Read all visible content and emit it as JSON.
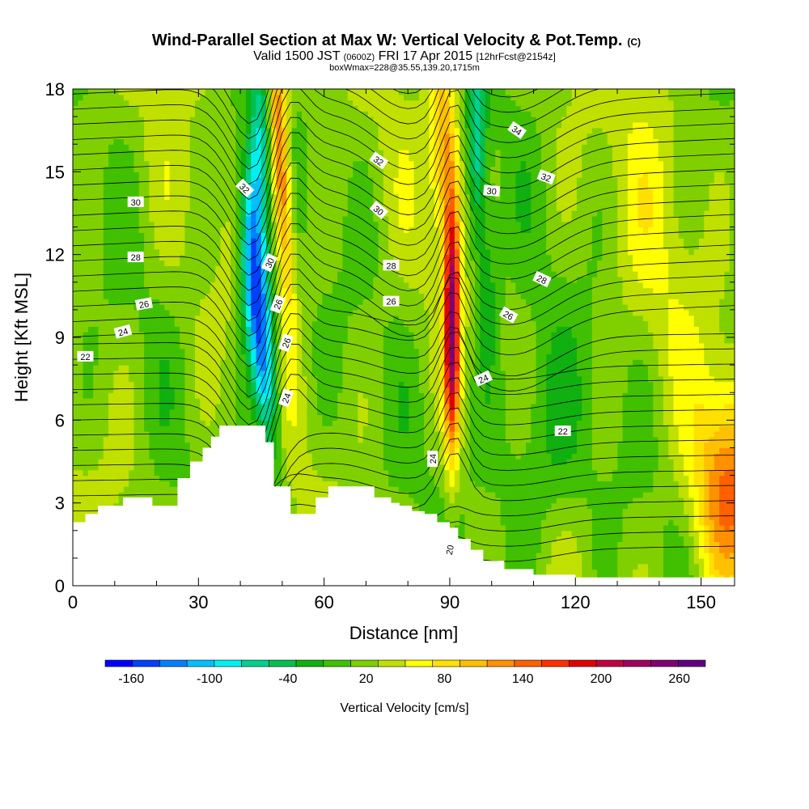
{
  "chart_data": {
    "type": "heatmap",
    "title": "Wind-Parallel Section at Max W: Vertical Velocity & Pot.Temp.",
    "title_units": "(C)",
    "subtitle": {
      "valid": "Valid 1500 JST",
      "zulu": "(0600Z)",
      "date": "FRI 17 Apr 2015",
      "forecast": "[12hrFcst@2154z]"
    },
    "info": "boxWmax=228@35.55,139.20,1715m",
    "xlabel": "Distance [nm]",
    "ylabel": "Height [Kft MSL]",
    "xlim": [
      0,
      158
    ],
    "ylim": [
      0,
      18
    ],
    "x_ticks": [
      0,
      30,
      60,
      90,
      120,
      150
    ],
    "y_ticks": [
      0,
      3,
      6,
      9,
      12,
      15,
      18
    ],
    "grid": false,
    "fill_variable": "Vertical Velocity [cm/s]",
    "colorbar": {
      "label": "Vertical Velocity [cm/s]",
      "tick_labels": [
        "-160",
        "-100",
        "-40",
        "20",
        "80",
        "140",
        "200",
        "260"
      ],
      "tick_values": [
        -160,
        -100,
        -40,
        20,
        80,
        140,
        200,
        260
      ],
      "range": [
        -180,
        280
      ],
      "colors": [
        "#0000ff",
        "#0040ff",
        "#0080ff",
        "#00c0ff",
        "#00f0f0",
        "#00d090",
        "#00c050",
        "#10b010",
        "#40c000",
        "#80d000",
        "#c0e000",
        "#ffff00",
        "#ffe000",
        "#ffc000",
        "#ff9000",
        "#ff6000",
        "#ff3000",
        "#e00000",
        "#c00040",
        "#a00060",
        "#800070",
        "#600080"
      ]
    },
    "terrain_profile": {
      "x": [
        0,
        3,
        6,
        12,
        19,
        25,
        28,
        31,
        33,
        35,
        38,
        46,
        48,
        52,
        55,
        58,
        61,
        67,
        72,
        76,
        78,
        81,
        84,
        87,
        90,
        92,
        95,
        98,
        103,
        110,
        120,
        140,
        158
      ],
      "height_kft": [
        2.3,
        2.6,
        2.9,
        3.2,
        2.9,
        3.9,
        4.5,
        5.0,
        5.4,
        5.8,
        5.8,
        5.2,
        3.6,
        2.6,
        2.6,
        3.2,
        3.6,
        3.6,
        3.2,
        3.0,
        2.9,
        2.7,
        2.6,
        2.3,
        2.1,
        1.7,
        1.3,
        0.9,
        0.6,
        0.4,
        0.3,
        0.3,
        0.3
      ]
    },
    "vertical_velocity_features": [
      {
        "name": "downdraft",
        "x_nm": 43,
        "z_top_kft": 18,
        "z_bottom_kft": 4,
        "min_cm_s": -150
      },
      {
        "name": "upper updraft",
        "x_nm": 50,
        "z_top_kft": 18,
        "z_bottom_kft": 8,
        "max_cm_s": 150
      },
      {
        "name": "main updraft",
        "x_nm": 90,
        "z_top_kft": 18,
        "z_bottom_kft": 4.5,
        "max_cm_s": 228
      },
      {
        "name": "downstream sink",
        "x_nm": 96,
        "z_top_kft": 18,
        "z_bottom_kft": 12,
        "min_cm_s": -80
      },
      {
        "name": "surface updraft",
        "x_nm": 155,
        "z_top_kft": 7,
        "z_bottom_kft": 0,
        "max_cm_s": 110
      }
    ],
    "pot_temp_contour_labels": [
      {
        "text": "34",
        "x": 106,
        "z": 16.5,
        "angle": 35
      },
      {
        "text": "32",
        "x": 73,
        "z": 15.4,
        "angle": 35
      },
      {
        "text": "32",
        "x": 41,
        "z": 14.4,
        "angle": 45
      },
      {
        "text": "32",
        "x": 113,
        "z": 14.8,
        "angle": 20
      },
      {
        "text": "30",
        "x": 15,
        "z": 13.9,
        "angle": 0
      },
      {
        "text": "30",
        "x": 73,
        "z": 13.6,
        "angle": 40
      },
      {
        "text": "30",
        "x": 100,
        "z": 14.3,
        "angle": 5
      },
      {
        "text": "30",
        "x": 47,
        "z": 11.7,
        "angle": -65
      },
      {
        "text": "28",
        "x": 15,
        "z": 11.9,
        "angle": 0
      },
      {
        "text": "28",
        "x": 76,
        "z": 11.6,
        "angle": 0
      },
      {
        "text": "28",
        "x": 112,
        "z": 11.1,
        "angle": 25
      },
      {
        "text": "26",
        "x": 17,
        "z": 10.2,
        "angle": -10
      },
      {
        "text": "26",
        "x": 49,
        "z": 10.2,
        "angle": -70
      },
      {
        "text": "26",
        "x": 76,
        "z": 10.3,
        "angle": 0
      },
      {
        "text": "26",
        "x": 104,
        "z": 9.8,
        "angle": 30
      },
      {
        "text": "26",
        "x": 51,
        "z": 8.8,
        "angle": -70
      },
      {
        "text": "24",
        "x": 12,
        "z": 9.2,
        "angle": -15
      },
      {
        "text": "24",
        "x": 51,
        "z": 6.8,
        "angle": -70
      },
      {
        "text": "24",
        "x": 98,
        "z": 7.5,
        "angle": -25
      },
      {
        "text": "24",
        "x": 86,
        "z": 4.6,
        "angle": -90
      },
      {
        "text": "22",
        "x": 3,
        "z": 8.3,
        "angle": 0
      },
      {
        "text": "22",
        "x": 117,
        "z": 5.6,
        "angle": 0
      },
      {
        "text": "20",
        "x": 90,
        "z": 1.3,
        "angle": -80
      }
    ]
  }
}
